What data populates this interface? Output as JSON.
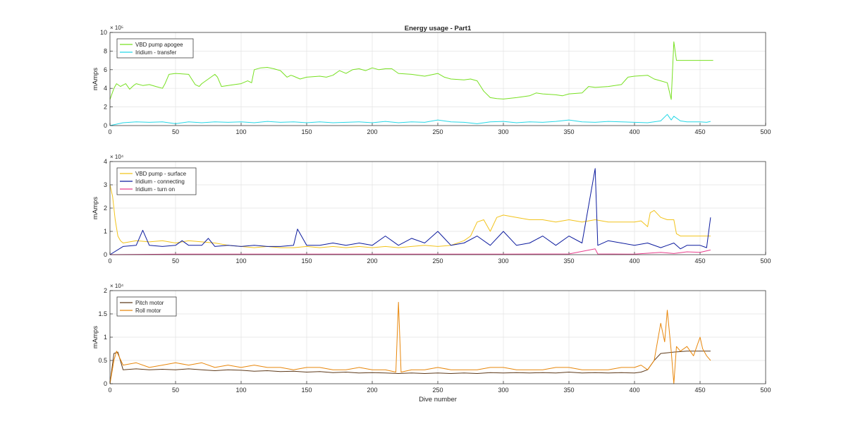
{
  "chart_data": [
    {
      "type": "line",
      "title": "Energy usage - Part1",
      "xlabel": "",
      "ylabel": "mAmps",
      "xlim": [
        0,
        500
      ],
      "ylim": [
        0,
        1000000
      ],
      "xticks": [
        0,
        50,
        100,
        150,
        200,
        250,
        300,
        350,
        400,
        450,
        500
      ],
      "yticks": [
        0,
        2,
        4,
        6,
        8,
        10
      ],
      "exponent_label": "× 10⁵",
      "grid": true,
      "legend_placement": "top-left",
      "series": [
        {
          "name": "VBD pump apogee",
          "color": "#77e021",
          "x": [
            0,
            3,
            5,
            8,
            12,
            15,
            18,
            20,
            25,
            30,
            35,
            40,
            42,
            45,
            50,
            55,
            60,
            65,
            68,
            70,
            75,
            80,
            82,
            85,
            90,
            95,
            100,
            105,
            108,
            110,
            115,
            120,
            125,
            130,
            135,
            138,
            140,
            145,
            150,
            160,
            165,
            170,
            175,
            180,
            185,
            190,
            195,
            200,
            205,
            210,
            215,
            220,
            230,
            240,
            250,
            255,
            260,
            270,
            275,
            280,
            285,
            290,
            295,
            300,
            310,
            320,
            325,
            330,
            340,
            345,
            350,
            360,
            365,
            370,
            380,
            390,
            395,
            400,
            410,
            415,
            420,
            425,
            428,
            430,
            432,
            440,
            450,
            460
          ],
          "y": [
            280000,
            400000,
            450000,
            420000,
            450000,
            390000,
            430000,
            450000,
            430000,
            440000,
            420000,
            400000,
            450000,
            550000,
            560000,
            555000,
            550000,
            440000,
            420000,
            450000,
            500000,
            550000,
            520000,
            420000,
            430000,
            440000,
            450000,
            480000,
            460000,
            600000,
            620000,
            625000,
            610000,
            590000,
            520000,
            540000,
            530000,
            500000,
            520000,
            530000,
            520000,
            540000,
            590000,
            560000,
            600000,
            610000,
            590000,
            620000,
            600000,
            610000,
            610000,
            560000,
            550000,
            530000,
            560000,
            520000,
            500000,
            490000,
            500000,
            480000,
            370000,
            300000,
            290000,
            285000,
            300000,
            320000,
            350000,
            340000,
            330000,
            320000,
            340000,
            350000,
            420000,
            410000,
            420000,
            440000,
            520000,
            530000,
            540000,
            500000,
            480000,
            460000,
            280000,
            900000,
            700000,
            700000,
            700000,
            700000
          ]
        },
        {
          "name": "Iridium - transfer",
          "color": "#25d7e6",
          "x": [
            0,
            10,
            20,
            30,
            40,
            50,
            60,
            70,
            80,
            90,
            100,
            110,
            120,
            130,
            140,
            150,
            160,
            170,
            180,
            190,
            200,
            210,
            220,
            230,
            240,
            250,
            260,
            270,
            280,
            290,
            300,
            310,
            320,
            330,
            340,
            350,
            360,
            370,
            380,
            390,
            400,
            410,
            420,
            425,
            428,
            430,
            435,
            440,
            450,
            455,
            458
          ],
          "y": [
            0,
            30000,
            40000,
            35000,
            40000,
            20000,
            40000,
            30000,
            40000,
            35000,
            40000,
            30000,
            45000,
            35000,
            40000,
            30000,
            40000,
            30000,
            35000,
            40000,
            30000,
            45000,
            30000,
            40000,
            35000,
            60000,
            40000,
            35000,
            20000,
            40000,
            45000,
            30000,
            40000,
            35000,
            45000,
            60000,
            40000,
            35000,
            45000,
            40000,
            35000,
            30000,
            50000,
            120000,
            60000,
            100000,
            50000,
            40000,
            40000,
            35000,
            45000
          ]
        }
      ]
    },
    {
      "type": "line",
      "title": "",
      "xlabel": "",
      "ylabel": "mAmps",
      "xlim": [
        0,
        500
      ],
      "ylim": [
        0,
        40000
      ],
      "xticks": [
        0,
        50,
        100,
        150,
        200,
        250,
        300,
        350,
        400,
        450,
        500
      ],
      "yticks": [
        0,
        1,
        2,
        3,
        4
      ],
      "exponent_label": "× 10⁴",
      "grid": true,
      "legend_placement": "top-left",
      "series": [
        {
          "name": "VBD pump - surface",
          "color": "#f2c31b",
          "x": [
            0,
            2,
            4,
            6,
            8,
            10,
            20,
            30,
            40,
            50,
            60,
            70,
            80,
            90,
            100,
            110,
            120,
            130,
            140,
            150,
            160,
            170,
            180,
            190,
            200,
            210,
            220,
            230,
            240,
            250,
            260,
            270,
            275,
            280,
            285,
            290,
            295,
            300,
            310,
            320,
            330,
            340,
            350,
            360,
            370,
            380,
            390,
            400,
            405,
            410,
            412,
            415,
            420,
            425,
            430,
            432,
            435,
            440,
            450,
            458
          ],
          "y": [
            30000,
            25000,
            15000,
            8000,
            6000,
            5000,
            6000,
            5500,
            6000,
            5000,
            6000,
            5500,
            5000,
            4000,
            3500,
            3000,
            3500,
            3000,
            3000,
            3500,
            3000,
            3500,
            3000,
            3500,
            3000,
            3500,
            3000,
            3500,
            4000,
            3500,
            4000,
            6000,
            8000,
            14000,
            15000,
            10000,
            16000,
            17000,
            16000,
            15000,
            15000,
            14000,
            15000,
            14000,
            15000,
            14000,
            14000,
            14000,
            14500,
            12000,
            18000,
            19000,
            16000,
            15000,
            15000,
            9000,
            8000,
            8000,
            8000,
            8000
          ]
        },
        {
          "name": "Iridium - connecting",
          "color": "#0c1b9e",
          "x": [
            0,
            10,
            20,
            25,
            30,
            40,
            50,
            55,
            60,
            70,
            75,
            80,
            90,
            100,
            110,
            120,
            130,
            140,
            143,
            150,
            160,
            170,
            180,
            190,
            200,
            210,
            220,
            230,
            240,
            250,
            260,
            270,
            280,
            290,
            300,
            310,
            320,
            330,
            340,
            350,
            360,
            370,
            372,
            380,
            390,
            400,
            410,
            420,
            425,
            430,
            435,
            440,
            450,
            455,
            458
          ],
          "y": [
            0,
            3500,
            4000,
            10500,
            4000,
            3500,
            4000,
            6000,
            4000,
            4000,
            7000,
            3500,
            4000,
            3500,
            4000,
            3500,
            3500,
            4000,
            11000,
            4000,
            4000,
            5000,
            4000,
            5000,
            4000,
            8000,
            4000,
            7000,
            5000,
            10000,
            4000,
            5000,
            8000,
            4000,
            10000,
            4000,
            5000,
            8000,
            4000,
            8000,
            5000,
            37000,
            4000,
            6000,
            5000,
            4000,
            5000,
            3000,
            4000,
            5000,
            2500,
            4000,
            4000,
            3000,
            16000
          ]
        },
        {
          "name": "Iridium - turn on",
          "color": "#e83e8c",
          "x": [
            0,
            50,
            100,
            150,
            200,
            250,
            300,
            350,
            370,
            372,
            400,
            420,
            430,
            440,
            450,
            458
          ],
          "y": [
            0,
            200,
            200,
            200,
            200,
            200,
            200,
            300,
            2500,
            300,
            200,
            1000,
            500,
            1200,
            1000,
            2000
          ]
        }
      ]
    },
    {
      "type": "line",
      "title": "",
      "xlabel": "Dive number",
      "ylabel": "mAmps",
      "xlim": [
        0,
        500
      ],
      "ylim": [
        0,
        20000
      ],
      "xticks": [
        0,
        50,
        100,
        150,
        200,
        250,
        300,
        350,
        400,
        450,
        500
      ],
      "yticks": [
        0,
        0.5,
        1,
        1.5,
        2
      ],
      "exponent_label": "× 10⁴",
      "grid": true,
      "legend_placement": "top-left",
      "series": [
        {
          "name": "Pitch motor",
          "color": "#5e3a1a",
          "x": [
            0,
            3,
            6,
            10,
            20,
            30,
            40,
            50,
            60,
            70,
            80,
            90,
            100,
            110,
            120,
            130,
            140,
            150,
            160,
            170,
            180,
            190,
            200,
            210,
            220,
            230,
            240,
            250,
            260,
            270,
            280,
            290,
            300,
            310,
            320,
            330,
            340,
            350,
            360,
            370,
            380,
            390,
            400,
            405,
            410,
            415,
            420,
            430,
            440,
            450,
            458
          ],
          "y": [
            0,
            6500,
            6800,
            3000,
            3200,
            3000,
            3100,
            3000,
            3200,
            3000,
            2800,
            3000,
            2900,
            2700,
            2800,
            2600,
            2700,
            2500,
            2600,
            2400,
            2500,
            2300,
            2400,
            2300,
            2200,
            2300,
            2200,
            2300,
            2200,
            2300,
            2200,
            2400,
            2300,
            2400,
            2300,
            2400,
            2300,
            2500,
            2300,
            2400,
            2300,
            2400,
            2300,
            2500,
            3000,
            5000,
            6500,
            6800,
            7000,
            7000,
            7000
          ]
        },
        {
          "name": "Roll motor",
          "color": "#e8870c",
          "x": [
            0,
            3,
            5,
            10,
            20,
            30,
            40,
            50,
            60,
            70,
            80,
            90,
            100,
            110,
            120,
            130,
            140,
            150,
            160,
            170,
            180,
            190,
            200,
            210,
            218,
            220,
            222,
            230,
            240,
            250,
            260,
            270,
            280,
            290,
            300,
            310,
            320,
            330,
            340,
            350,
            360,
            370,
            380,
            390,
            400,
            405,
            410,
            415,
            420,
            423,
            425,
            428,
            430,
            432,
            435,
            440,
            445,
            450,
            452,
            455,
            458
          ],
          "y": [
            0,
            5000,
            7000,
            4000,
            4500,
            3500,
            4000,
            4500,
            4000,
            4500,
            3500,
            4000,
            3500,
            4000,
            3500,
            3500,
            3000,
            3500,
            3500,
            3000,
            3000,
            3500,
            3000,
            3000,
            2500,
            17500,
            2500,
            3000,
            3000,
            3500,
            3000,
            3000,
            3000,
            3500,
            3500,
            3000,
            3000,
            3000,
            3500,
            3500,
            3000,
            3000,
            3000,
            3500,
            3500,
            4000,
            3000,
            5000,
            13000,
            9000,
            15800,
            7000,
            0,
            8000,
            7000,
            8000,
            6000,
            10000,
            7500,
            6000,
            5000
          ]
        }
      ]
    }
  ]
}
